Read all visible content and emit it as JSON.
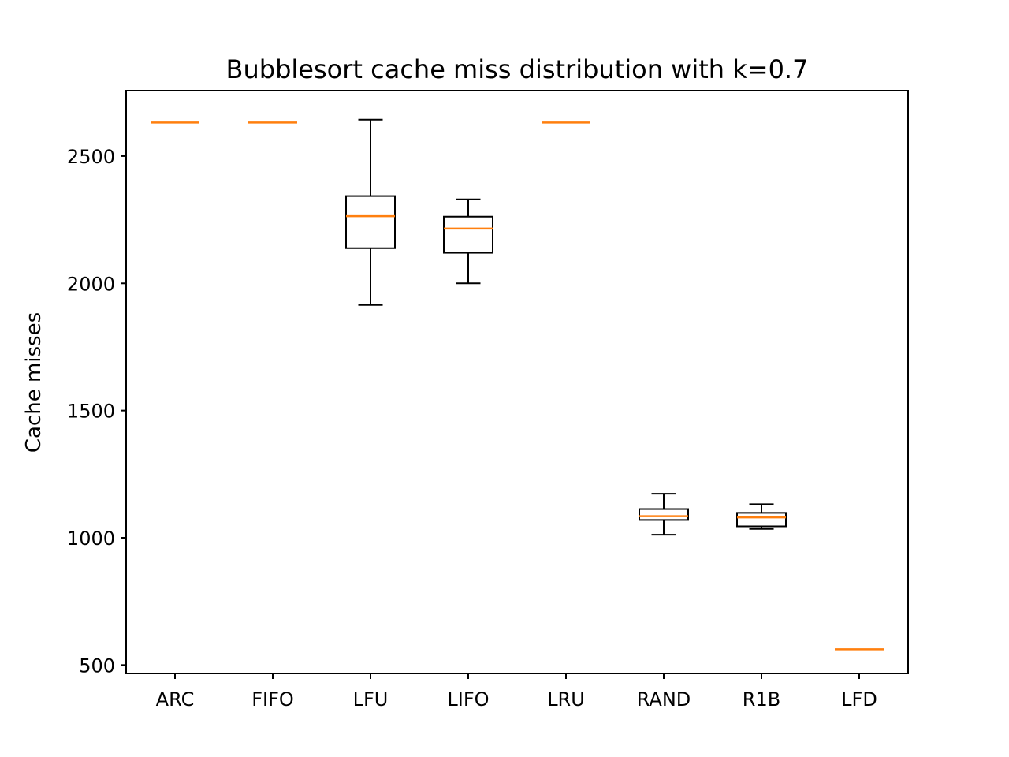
{
  "chart_data": {
    "type": "box",
    "title": "Bubblesort cache miss distribution with k=0.7",
    "xlabel": "",
    "ylabel": "Cache misses",
    "ylim": [
      467,
      2757
    ],
    "yticks": [
      500,
      1000,
      1500,
      2000,
      2500
    ],
    "categories": [
      "ARC",
      "FIFO",
      "LFU",
      "LIFO",
      "LRU",
      "RAND",
      "R1B",
      "LFD"
    ],
    "boxes": [
      {
        "category": "ARC",
        "whisker_low": 2632,
        "q1": 2632,
        "median": 2632,
        "q3": 2632,
        "whisker_high": 2632
      },
      {
        "category": "FIFO",
        "whisker_low": 2632,
        "q1": 2632,
        "median": 2632,
        "q3": 2632,
        "whisker_high": 2632
      },
      {
        "category": "LFU",
        "whisker_low": 1915,
        "q1": 2138,
        "median": 2264,
        "q3": 2343,
        "whisker_high": 2643
      },
      {
        "category": "LIFO",
        "whisker_low": 2000,
        "q1": 2120,
        "median": 2215,
        "q3": 2262,
        "whisker_high": 2330
      },
      {
        "category": "LRU",
        "whisker_low": 2632,
        "q1": 2632,
        "median": 2632,
        "q3": 2632,
        "whisker_high": 2632
      },
      {
        "category": "RAND",
        "whisker_low": 1012,
        "q1": 1070,
        "median": 1085,
        "q3": 1113,
        "whisker_high": 1173
      },
      {
        "category": "R1B",
        "whisker_low": 1035,
        "q1": 1045,
        "median": 1080,
        "q3": 1098,
        "whisker_high": 1132
      },
      {
        "category": "LFD",
        "whisker_low": 562,
        "q1": 562,
        "median": 562,
        "q3": 562,
        "whisker_high": 562
      }
    ],
    "grid": false,
    "colors": {
      "box": "#000000",
      "median": "#ff7f0e"
    }
  }
}
